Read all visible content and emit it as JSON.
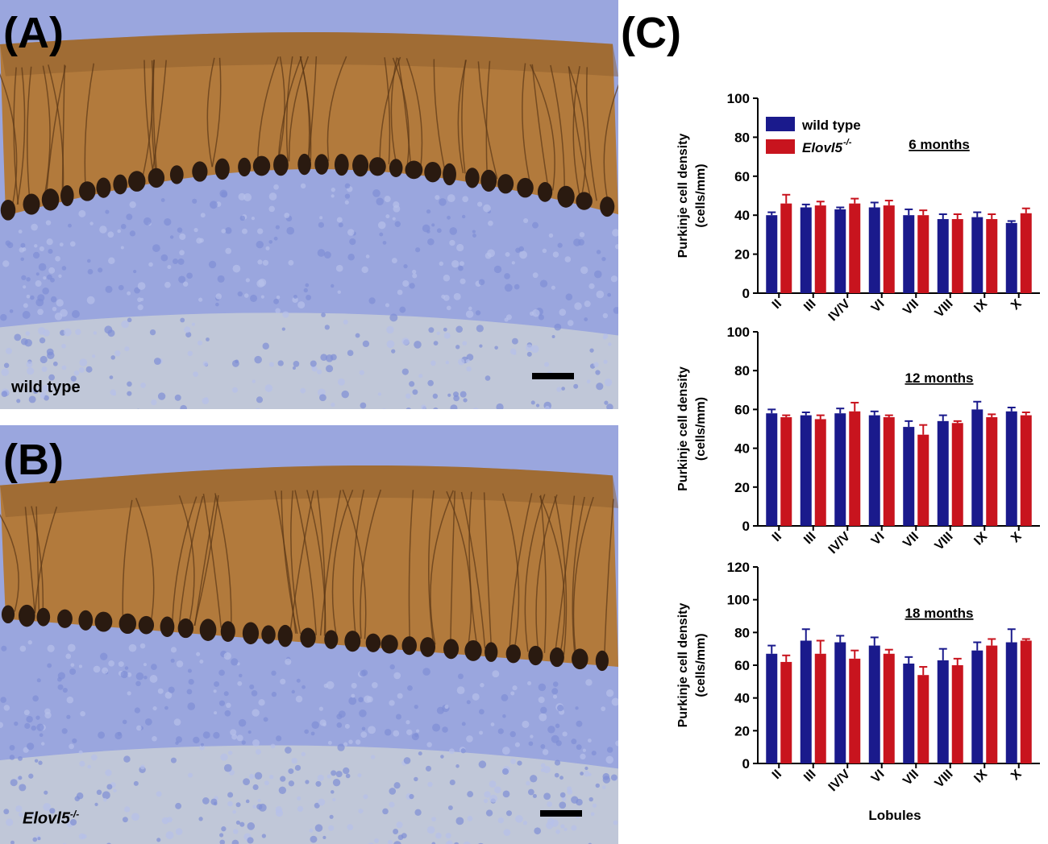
{
  "panels": {
    "a": {
      "letter": "(A)",
      "label": "wild type"
    },
    "b": {
      "letter": "(B)",
      "label": "Elovl5",
      "label_sup": "-/-"
    },
    "c": {
      "letter": "(C)"
    }
  },
  "colors": {
    "wild_type": "#1a1a8c",
    "elovl5": "#c8141e",
    "molecular_layer": "#b27a3c",
    "granular_layer": "#9aa6de",
    "white_matter": "#c9cfd6",
    "purkinje_soma": "#2a1a10"
  },
  "legend": {
    "wild_type": "wild type",
    "mutant": "Elovl5",
    "mutant_sup": "-/-"
  },
  "chart_data": [
    {
      "type": "bar",
      "title": "6 months",
      "ylabel_line1": "Purkinje cell density",
      "ylabel_line2": "(cells/mm)",
      "xlabel": "",
      "categories": [
        "II",
        "III",
        "IV/V",
        "VI",
        "VII",
        "VIII",
        "IX",
        "X"
      ],
      "ylim": [
        0,
        100
      ],
      "yticks": [
        0,
        20,
        40,
        60,
        80,
        100
      ],
      "series": [
        {
          "name": "wild type",
          "values": [
            40,
            44,
            43,
            44,
            40,
            38,
            39,
            36
          ],
          "errors": [
            1.5,
            1.5,
            1,
            2.5,
            3,
            2.5,
            2.5,
            1
          ]
        },
        {
          "name": "Elovl5-/-",
          "values": [
            46,
            45,
            46,
            45,
            40,
            38,
            38,
            41
          ],
          "errors": [
            4.5,
            2,
            2.5,
            2.5,
            2.5,
            2.5,
            2.5,
            2.5
          ]
        }
      ]
    },
    {
      "type": "bar",
      "title": "12 months",
      "ylabel_line1": "Purkinje cell density",
      "ylabel_line2": "(cells/mm)",
      "xlabel": "",
      "categories": [
        "II",
        "III",
        "IV/V",
        "VI",
        "VII",
        "VIII",
        "IX",
        "X"
      ],
      "ylim": [
        0,
        100
      ],
      "yticks": [
        0,
        20,
        40,
        60,
        80,
        100
      ],
      "series": [
        {
          "name": "wild type",
          "values": [
            58,
            57,
            58,
            57,
            51,
            54,
            60,
            59
          ],
          "errors": [
            2,
            1.5,
            2.5,
            2,
            3,
            3,
            4,
            2
          ]
        },
        {
          "name": "Elovl5-/-",
          "values": [
            56,
            55,
            59,
            56,
            47,
            53,
            56,
            57
          ],
          "errors": [
            1,
            2,
            4.5,
            1,
            5,
            1,
            1.5,
            1.5
          ]
        }
      ]
    },
    {
      "type": "bar",
      "title": "18 months",
      "ylabel_line1": "Purkinje cell density",
      "ylabel_line2": "(cells/mm)",
      "xlabel": "Lobules",
      "categories": [
        "II",
        "III",
        "IV/V",
        "VI",
        "VII",
        "VIII",
        "IX",
        "X"
      ],
      "ylim": [
        0,
        120
      ],
      "yticks": [
        0,
        20,
        40,
        60,
        80,
        100,
        120
      ],
      "series": [
        {
          "name": "wild type",
          "values": [
            67,
            75,
            74,
            72,
            61,
            63,
            69,
            74
          ],
          "errors": [
            5,
            7,
            4,
            5,
            4,
            7,
            5,
            8
          ]
        },
        {
          "name": "Elovl5-/-",
          "values": [
            62,
            67,
            64,
            67,
            54,
            60,
            72,
            75
          ],
          "errors": [
            4,
            8,
            5,
            2.5,
            5,
            4,
            4,
            1
          ]
        }
      ]
    }
  ]
}
